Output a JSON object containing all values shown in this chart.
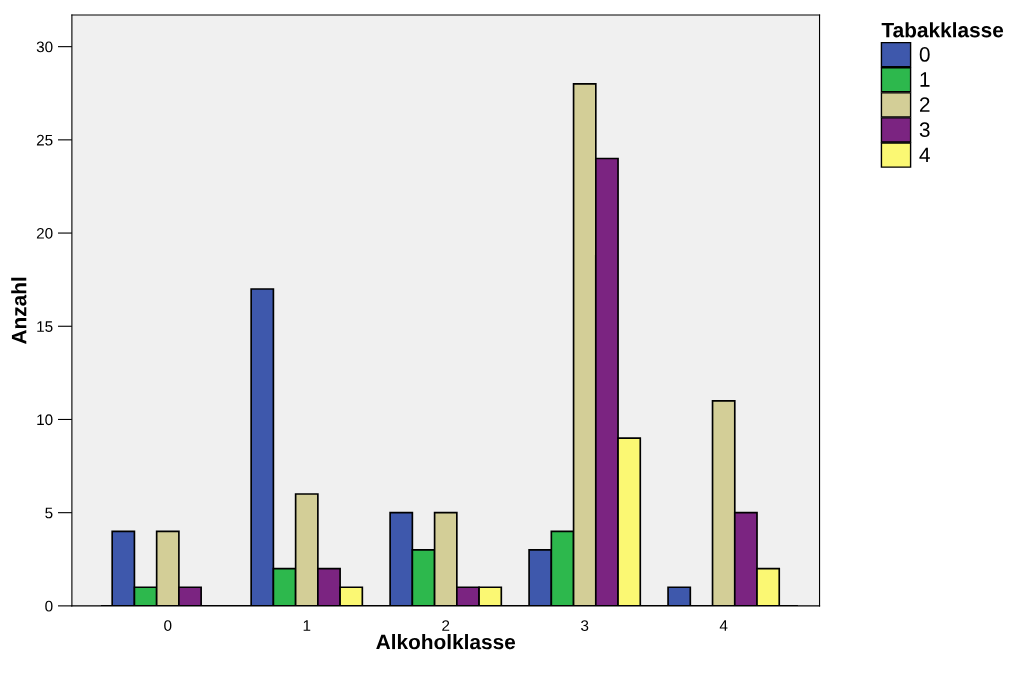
{
  "chart_data": {
    "type": "bar",
    "xlabel": "Alkoholklasse",
    "ylabel": "Anzahl",
    "legend_title": "Tabakklasse",
    "categories": [
      "0",
      "1",
      "2",
      "3",
      "4"
    ],
    "series": [
      {
        "name": "0",
        "color": "#3e58ac",
        "values": [
          4,
          17,
          5,
          3,
          1
        ]
      },
      {
        "name": "1",
        "color": "#2db84d",
        "values": [
          1,
          2,
          3,
          4,
          null
        ]
      },
      {
        "name": "2",
        "color": "#d3ce97",
        "values": [
          4,
          6,
          5,
          28,
          11
        ]
      },
      {
        "name": "3",
        "color": "#7b2481",
        "values": [
          1,
          2,
          1,
          24,
          5
        ]
      },
      {
        "name": "4",
        "color": "#fbf873",
        "values": [
          null,
          1,
          1,
          9,
          2
        ]
      }
    ],
    "ylim": [
      0,
      31.7
    ],
    "yticks": [
      0,
      5,
      10,
      15,
      20,
      25,
      30
    ],
    "grid": false,
    "legend": "top right"
  }
}
